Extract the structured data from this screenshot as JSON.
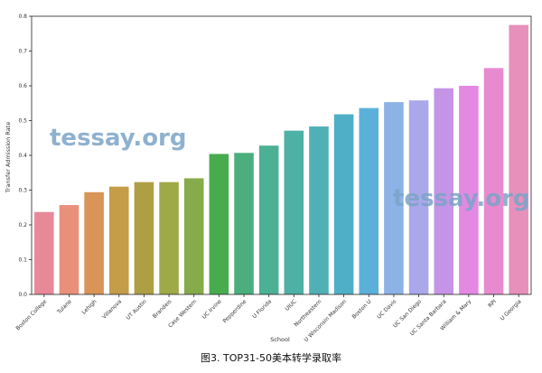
{
  "caption": "图3. TOP31-50美本转学录取率",
  "watermarks": [
    "tessay.org",
    "tessay.org"
  ],
  "chart_data": {
    "type": "bar",
    "title": "",
    "xlabel": "School",
    "ylabel": "Transfer Admission Rate",
    "ylim": [
      0,
      0.8
    ],
    "yticks": [
      0.0,
      0.1,
      0.2,
      0.3,
      0.4,
      0.5,
      0.6,
      0.7,
      0.8
    ],
    "ytick_labels": [
      "0.0",
      "0.1",
      "0.2",
      "0.3",
      "0.4",
      "0.5",
      "0.6",
      "0.7",
      "0.8"
    ],
    "grid": false,
    "categories": [
      "Boston College",
      "Tulane",
      "Lehigh",
      "Villanova",
      "UT Austin",
      "Brandeis",
      "Case Western",
      "UC Irvine",
      "Pepperdine",
      "U Florida",
      "UIUC",
      "Northeastern",
      "U Wisconsin Madison",
      "Boston U",
      "UC Davis",
      "UC San Diego",
      "UC Santa Barbara",
      "William & Mary",
      "RPI",
      "U Georgia"
    ],
    "values": [
      0.237,
      0.257,
      0.294,
      0.31,
      0.323,
      0.323,
      0.334,
      0.404,
      0.407,
      0.428,
      0.471,
      0.483,
      0.518,
      0.536,
      0.553,
      0.558,
      0.593,
      0.6,
      0.651,
      0.775
    ],
    "colors": [
      "#e8899a",
      "#e8907a",
      "#d99457",
      "#c59c48",
      "#ae9f45",
      "#9ea947",
      "#86ab4a",
      "#48ac4f",
      "#4bae7d",
      "#4cb194",
      "#4db1a6",
      "#4fb0b6",
      "#4fafc7",
      "#5bb0da",
      "#8cb2e6",
      "#aaa8ea",
      "#c694e7",
      "#e389e2",
      "#e88ad0",
      "#e790bb"
    ]
  }
}
